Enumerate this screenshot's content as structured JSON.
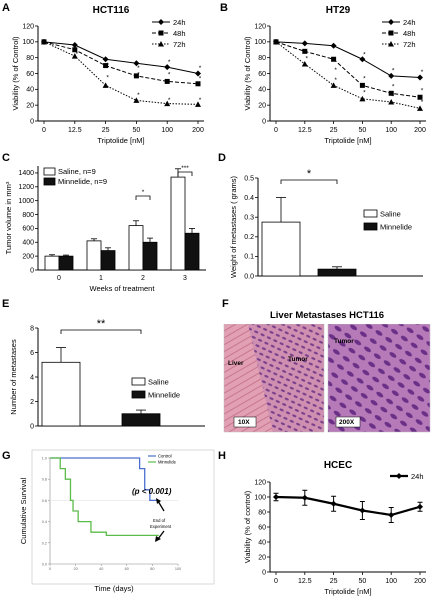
{
  "panels": {
    "A": {
      "letter": "A"
    },
    "B": {
      "letter": "B"
    },
    "C": {
      "letter": "C"
    },
    "D": {
      "letter": "D"
    },
    "E": {
      "letter": "E"
    },
    "F": {
      "letter": "F",
      "title": "Liver Metastases HCT116",
      "left_label_liver": "Liver",
      "left_label_tumor": "Tumor",
      "left_scale": "10X",
      "right_label_tumor": "Tumor",
      "right_scale": "200X"
    },
    "G": {
      "letter": "G"
    },
    "H": {
      "letter": "H"
    }
  },
  "colors": {
    "pink_tissue": "#d8909f",
    "purple_tissue": "#a15fa8",
    "km_control": "#4a6fd0",
    "km_minnelide": "#5cbc4a"
  },
  "chart_data": [
    {
      "id": "A",
      "type": "line",
      "title": "HCT116",
      "xlabel": "Triptolide [nM]",
      "ylabel": "Viability (% of Control)",
      "categories": [
        "0",
        "12.5",
        "25",
        "50",
        "100",
        "200"
      ],
      "ylim": [
        0,
        120
      ],
      "yticks": [
        0,
        20,
        40,
        60,
        80,
        100,
        120
      ],
      "legend": "top-right",
      "series": [
        {
          "name": "24h",
          "marker": "diamond",
          "dash": "solid",
          "values": [
            100,
            96,
            78,
            73,
            68,
            60
          ]
        },
        {
          "name": "48h",
          "marker": "square",
          "dash": "dash",
          "values": [
            100,
            90,
            70,
            57,
            50,
            47
          ]
        },
        {
          "name": "72h",
          "marker": "triangle",
          "dash": "dot",
          "values": [
            100,
            82,
            45,
            26,
            22,
            21
          ]
        }
      ],
      "stars": [
        {
          "x": 1,
          "y": 86
        },
        {
          "x": 2,
          "y": 72
        },
        {
          "x": 2,
          "y": 56
        },
        {
          "x": 3,
          "y": 68
        },
        {
          "x": 3,
          "y": 60
        },
        {
          "x": 3,
          "y": 34
        },
        {
          "x": 4,
          "y": 76
        },
        {
          "x": 4,
          "y": 60
        },
        {
          "x": 4,
          "y": 28
        },
        {
          "x": 5,
          "y": 68
        },
        {
          "x": 5,
          "y": 55
        },
        {
          "x": 5,
          "y": 28
        }
      ]
    },
    {
      "id": "B",
      "type": "line",
      "title": "HT29",
      "xlabel": "Triptolide [nM]",
      "ylabel": "Viability (% of Control)",
      "categories": [
        "0",
        "12.5",
        "25",
        "50",
        "100",
        "200"
      ],
      "ylim": [
        0,
        120
      ],
      "yticks": [
        0,
        20,
        40,
        60,
        80,
        100,
        120
      ],
      "legend": "top-right",
      "series": [
        {
          "name": "24h",
          "marker": "diamond",
          "dash": "solid",
          "values": [
            100,
            98,
            95,
            78,
            57,
            55
          ]
        },
        {
          "name": "48h",
          "marker": "square",
          "dash": "dash",
          "values": [
            100,
            88,
            78,
            45,
            35,
            30
          ]
        },
        {
          "name": "72h",
          "marker": "triangle",
          "dash": "dot",
          "values": [
            100,
            72,
            45,
            28,
            24,
            16
          ]
        }
      ],
      "stars": [
        {
          "x": 1,
          "y": 80
        },
        {
          "x": 2,
          "y": 66
        },
        {
          "x": 2,
          "y": 53
        },
        {
          "x": 3,
          "y": 85
        },
        {
          "x": 3,
          "y": 55
        },
        {
          "x": 3,
          "y": 37
        },
        {
          "x": 4,
          "y": 65
        },
        {
          "x": 4,
          "y": 45
        },
        {
          "x": 4,
          "y": 32
        },
        {
          "x": 5,
          "y": 63
        },
        {
          "x": 5,
          "y": 40
        },
        {
          "x": 5,
          "y": 25
        }
      ]
    },
    {
      "id": "C",
      "type": "bar",
      "xlabel": "Weeks of treatment",
      "ylabel": "Tumor volume in mm³",
      "categories": [
        "0",
        "1",
        "2",
        "3"
      ],
      "ylim": [
        0,
        1500
      ],
      "yticks": [
        0,
        200,
        400,
        600,
        800,
        1000,
        1200,
        1400
      ],
      "legend": "top-left",
      "series": [
        {
          "name": "Saline, n=9",
          "fill": "#ffffff",
          "values": [
            200,
            420,
            640,
            1340
          ],
          "errors": [
            20,
            30,
            70,
            120
          ]
        },
        {
          "name": "Minnelide, n=9",
          "fill": "#111111",
          "values": [
            200,
            280,
            400,
            530
          ],
          "errors": [
            15,
            40,
            60,
            70
          ]
        }
      ],
      "sig": [
        {
          "cat": 2,
          "label": "*"
        },
        {
          "cat": 3,
          "label": "***"
        }
      ]
    },
    {
      "id": "D",
      "type": "bar",
      "ylabel": "Weight of metastases ( grams)",
      "ylim": [
        0,
        0.5
      ],
      "yticks": [
        0.0,
        0.1,
        0.2,
        0.3,
        0.4,
        0.5
      ],
      "legend": "right",
      "series": [
        {
          "name": "Saline",
          "fill": "#ffffff",
          "values": [
            0.275
          ],
          "errors": [
            0.125
          ]
        },
        {
          "name": "Minnelide",
          "fill": "#111111",
          "values": [
            0.035
          ],
          "errors": [
            0.012
          ]
        }
      ],
      "sig": [
        {
          "label": "*"
        }
      ]
    },
    {
      "id": "E",
      "type": "bar",
      "ylabel": "Number of metastases",
      "ylim": [
        0,
        8
      ],
      "yticks": [
        0,
        2,
        4,
        6,
        8
      ],
      "legend": "right",
      "series": [
        {
          "name": "Saline",
          "fill": "#ffffff",
          "values": [
            5.2
          ],
          "errors": [
            1.2
          ]
        },
        {
          "name": "Minnelide",
          "fill": "#111111",
          "values": [
            1.0
          ],
          "errors": [
            0.3
          ]
        }
      ],
      "sig": [
        {
          "label": "**"
        }
      ]
    },
    {
      "id": "G",
      "type": "line",
      "xlabel": "Time (days)",
      "ylabel": "Cumulative Survival",
      "xlim": [
        0,
        100
      ],
      "xticks": [
        0,
        20,
        40,
        60,
        80,
        100
      ],
      "ylim": [
        0,
        1.0
      ],
      "yticks": [
        0.0,
        0.2,
        0.4,
        0.6,
        0.8,
        1.0
      ],
      "legend": "top-right",
      "pvalue": "(p < 0.001)",
      "annotation": "End of Experiment",
      "series": [
        {
          "name": "Control",
          "color": "#4a6fd0",
          "steps": [
            [
              0,
              1.0
            ],
            [
              70,
              1.0
            ],
            [
              70,
              0.9
            ],
            [
              74,
              0.9
            ],
            [
              74,
              0.7
            ],
            [
              78,
              0.7
            ],
            [
              78,
              0.6
            ],
            [
              85,
              0.6
            ]
          ]
        },
        {
          "name": "Minnelide",
          "color": "#5cbc4a",
          "steps": [
            [
              0,
              1.0
            ],
            [
              8,
              1.0
            ],
            [
              8,
              0.9
            ],
            [
              12,
              0.9
            ],
            [
              12,
              0.8
            ],
            [
              16,
              0.8
            ],
            [
              16,
              0.6
            ],
            [
              18,
              0.6
            ],
            [
              18,
              0.5
            ],
            [
              22,
              0.5
            ],
            [
              22,
              0.4
            ],
            [
              32,
              0.4
            ],
            [
              32,
              0.3
            ],
            [
              44,
              0.3
            ],
            [
              44,
              0.27
            ],
            [
              85,
              0.27
            ]
          ]
        }
      ]
    },
    {
      "id": "H",
      "type": "line",
      "title": "HCEC",
      "xlabel": "Triptolide [nM]",
      "ylabel": "Viability (% of control)",
      "categories": [
        "0",
        "12.5",
        "25",
        "50",
        "100",
        "200"
      ],
      "ylim": [
        0,
        120
      ],
      "yticks": [
        0,
        20,
        40,
        60,
        80,
        100,
        120
      ],
      "legend": "top-right",
      "series": [
        {
          "name": "24h",
          "marker": "diamond",
          "dash": "solid",
          "values": [
            100,
            99,
            91,
            82,
            76,
            87
          ],
          "errors": [
            5,
            10,
            10,
            12,
            10,
            6
          ]
        }
      ]
    }
  ]
}
